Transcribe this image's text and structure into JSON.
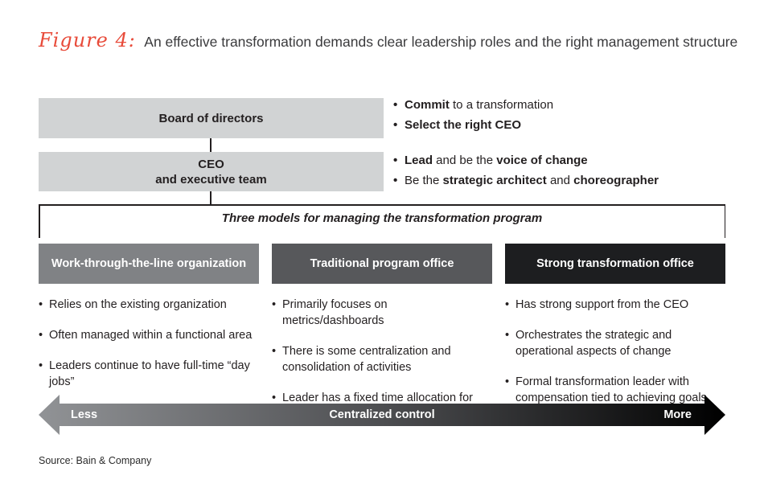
{
  "title": {
    "figure_label": "Figure 4:",
    "text": "An effective transformation demands clear leadership roles and the right management structure",
    "label_color": "#e84b3a"
  },
  "org_chart": {
    "board_label": "Board of directors",
    "ceo_label_line1": "CEO",
    "ceo_label_line2": "and executive team",
    "box_color": "#d1d3d4"
  },
  "responsibilities": {
    "board": [
      [
        {
          "text": "Commit",
          "bold": true
        },
        {
          "text": " to a transformation",
          "bold": false
        }
      ],
      [
        {
          "text": "Select the right CEO",
          "bold": true
        }
      ]
    ],
    "ceo": [
      [
        {
          "text": "Lead",
          "bold": true
        },
        {
          "text": " and be the ",
          "bold": false
        },
        {
          "text": "voice of change",
          "bold": true
        }
      ],
      [
        {
          "text": "Be the ",
          "bold": false
        },
        {
          "text": "strategic architect",
          "bold": true
        },
        {
          "text": " and ",
          "bold": false
        },
        {
          "text": "choreographer",
          "bold": true
        }
      ]
    ]
  },
  "bracket_label": "Three models for managing the transformation program",
  "models": [
    {
      "header": "Work-through-the-line organization",
      "header_color": "#808285",
      "bullets": [
        "Relies on the existing organization",
        "Often managed within a functional area",
        "Leaders continue to have full-time “day jobs”"
      ]
    },
    {
      "header": "Traditional program office",
      "header_color": "#57585b",
      "bullets": [
        "Primarily focuses on metrics/dashboards",
        "There is some centralization and consolidation of activities",
        "Leader has a fixed time allocation for the transformation"
      ]
    },
    {
      "header": "Strong transformation office",
      "header_color": "#1d1e20",
      "bullets": [
        "Has strong support from the CEO",
        "Orchestrates the strategic and operational aspects of change",
        "Formal transformation leader with compensation tied to achieving goals"
      ]
    }
  ],
  "axis": {
    "left_label": "Less",
    "center_label": "Centralized control",
    "right_label": "More",
    "gradient_from": "#919396",
    "gradient_mid": "#4d4e51",
    "gradient_to": "#000000"
  },
  "source": "Source: Bain & Company"
}
